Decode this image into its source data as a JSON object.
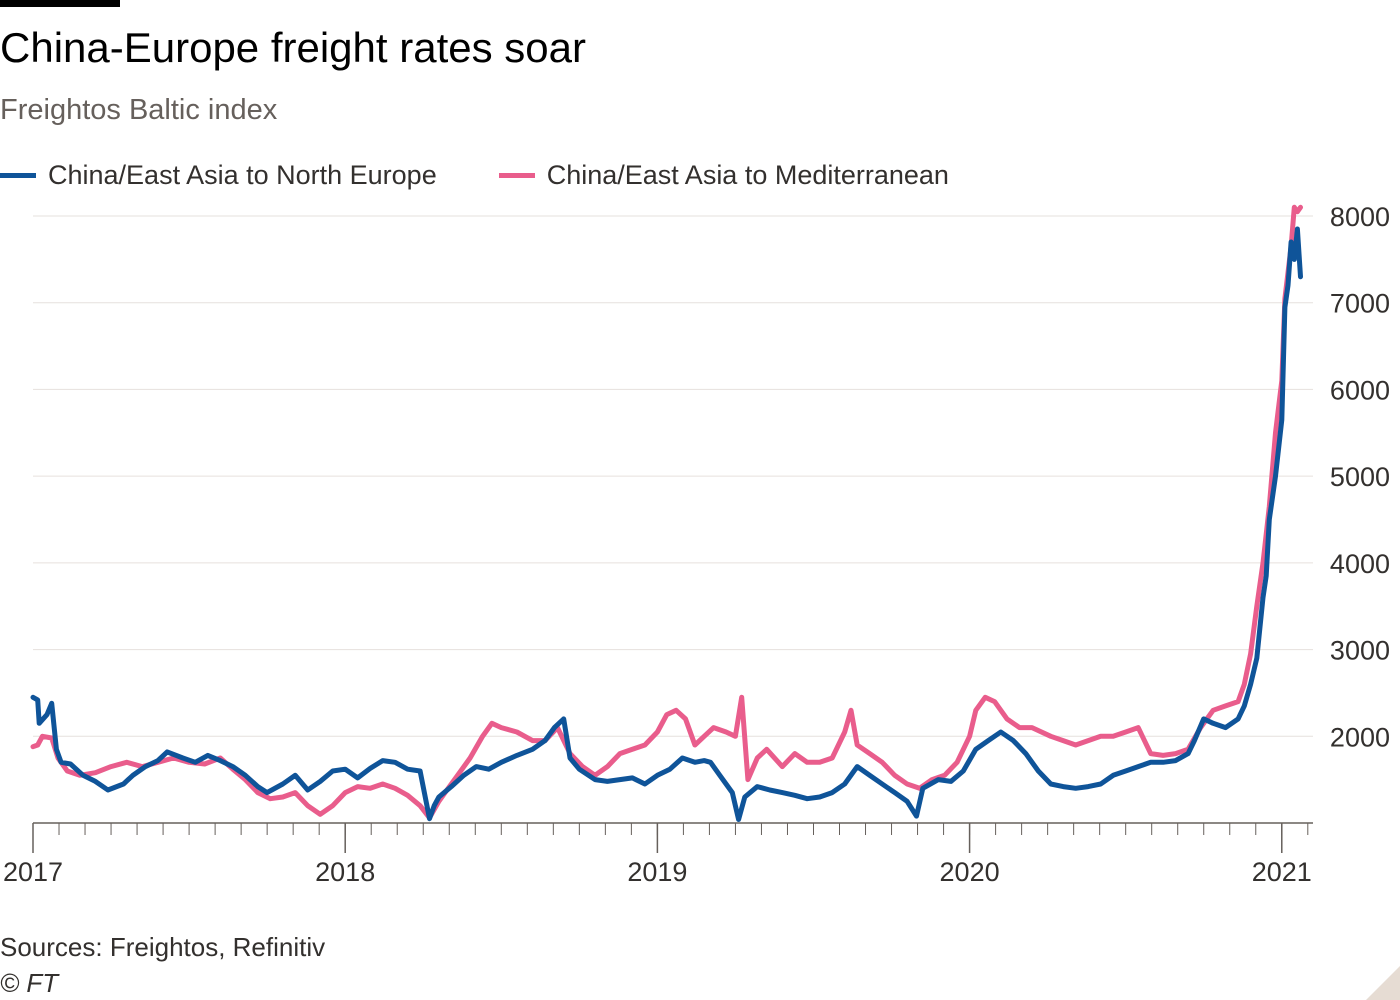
{
  "title": "China-Europe freight rates soar",
  "subtitle": "Freightos Baltic index",
  "source": "Sources: Freightos, Refinitiv",
  "credit": "© FT",
  "colors": {
    "north_europe": "#0f5499",
    "mediterranean": "#e95d8c",
    "grid": "#e6e1dd",
    "axis": "#66605c"
  },
  "chart_data": {
    "type": "line",
    "title": "China-Europe freight rates soar",
    "subtitle": "Freightos Baltic index",
    "xlabel": "",
    "ylabel": "",
    "xlim": [
      2017.0,
      2021.1
    ],
    "ylim": [
      1000,
      8000
    ],
    "y_ticks": [
      2000,
      3000,
      4000,
      5000,
      6000,
      7000,
      8000
    ],
    "x_ticks": [
      2017,
      2018,
      2019,
      2020,
      2021
    ],
    "x_tick_labels": [
      "2017",
      "2018",
      "2019",
      "2020",
      "2021"
    ],
    "grid": true,
    "y_axis_side": "right",
    "legend_position": "top",
    "series": [
      {
        "name": "China/East Asia to North Europe",
        "color": "#0f5499",
        "x": [
          2017.0,
          2017.015,
          2017.02,
          2017.045,
          2017.06,
          2017.075,
          2017.09,
          2017.12,
          2017.16,
          2017.2,
          2017.24,
          2017.29,
          2017.32,
          2017.36,
          2017.4,
          2017.43,
          2017.48,
          2017.52,
          2017.56,
          2017.6,
          2017.64,
          2017.68,
          2017.72,
          2017.75,
          2017.8,
          2017.84,
          2017.88,
          2017.92,
          2017.96,
          2018.0,
          2018.04,
          2018.08,
          2018.12,
          2018.16,
          2018.2,
          2018.24,
          2018.27,
          2018.285,
          2018.3,
          2018.34,
          2018.38,
          2018.42,
          2018.46,
          2018.5,
          2018.55,
          2018.6,
          2018.64,
          2018.67,
          2018.7,
          2018.72,
          2018.75,
          2018.8,
          2018.84,
          2018.88,
          2018.92,
          2018.96,
          2019.0,
          2019.04,
          2019.08,
          2019.12,
          2019.15,
          2019.17,
          2019.2,
          2019.24,
          2019.26,
          2019.28,
          2019.32,
          2019.36,
          2019.4,
          2019.44,
          2019.48,
          2019.52,
          2019.56,
          2019.6,
          2019.64,
          2019.68,
          2019.72,
          2019.76,
          2019.8,
          2019.83,
          2019.85,
          2019.9,
          2019.94,
          2019.98,
          2020.02,
          2020.06,
          2020.1,
          2020.14,
          2020.18,
          2020.22,
          2020.26,
          2020.3,
          2020.34,
          2020.38,
          2020.42,
          2020.46,
          2020.5,
          2020.54,
          2020.58,
          2020.62,
          2020.66,
          2020.7,
          2020.72,
          2020.75,
          2020.78,
          2020.82,
          2020.86,
          2020.88,
          2020.9,
          2020.92,
          2020.94,
          2020.95,
          2020.96,
          2020.98,
          2021.0,
          2021.01,
          2021.02,
          2021.03,
          2021.04,
          2021.05,
          2021.06
        ],
        "y": [
          2450,
          2420,
          2150,
          2250,
          2380,
          1850,
          1700,
          1680,
          1550,
          1480,
          1380,
          1450,
          1550,
          1650,
          1720,
          1820,
          1750,
          1700,
          1780,
          1720,
          1650,
          1550,
          1420,
          1350,
          1450,
          1550,
          1380,
          1480,
          1600,
          1620,
          1520,
          1630,
          1720,
          1700,
          1620,
          1600,
          1050,
          1200,
          1300,
          1420,
          1550,
          1650,
          1620,
          1700,
          1780,
          1850,
          1950,
          2100,
          2200,
          1750,
          1620,
          1500,
          1480,
          1500,
          1520,
          1450,
          1550,
          1620,
          1750,
          1700,
          1720,
          1700,
          1550,
          1350,
          1040,
          1300,
          1420,
          1380,
          1350,
          1320,
          1280,
          1300,
          1350,
          1450,
          1650,
          1550,
          1450,
          1350,
          1250,
          1080,
          1400,
          1500,
          1480,
          1600,
          1850,
          1950,
          2050,
          1950,
          1800,
          1600,
          1450,
          1420,
          1400,
          1420,
          1450,
          1550,
          1600,
          1650,
          1700,
          1700,
          1720,
          1800,
          1950,
          2200,
          2150,
          2100,
          2200,
          2350,
          2600,
          2900,
          3600,
          3850,
          4500,
          5000,
          5650,
          6950,
          7200,
          7700,
          7500,
          7850,
          7300
        ]
      },
      {
        "name": "China/East Asia to Mediterranean",
        "color": "#e95d8c",
        "x": [
          2017.0,
          2017.015,
          2017.03,
          2017.06,
          2017.08,
          2017.11,
          2017.15,
          2017.2,
          2017.25,
          2017.3,
          2017.35,
          2017.4,
          2017.45,
          2017.5,
          2017.55,
          2017.6,
          2017.64,
          2017.68,
          2017.72,
          2017.76,
          2017.8,
          2017.84,
          2017.88,
          2017.92,
          2017.96,
          2018.0,
          2018.04,
          2018.08,
          2018.12,
          2018.16,
          2018.2,
          2018.24,
          2018.27,
          2018.3,
          2018.32,
          2018.36,
          2018.4,
          2018.44,
          2018.47,
          2018.5,
          2018.55,
          2018.6,
          2018.64,
          2018.68,
          2018.72,
          2018.76,
          2018.8,
          2018.84,
          2018.88,
          2018.92,
          2018.96,
          2019.0,
          2019.03,
          2019.06,
          2019.09,
          2019.12,
          2019.15,
          2019.18,
          2019.22,
          2019.25,
          2019.27,
          2019.29,
          2019.32,
          2019.35,
          2019.4,
          2019.44,
          2019.48,
          2019.52,
          2019.56,
          2019.6,
          2019.62,
          2019.64,
          2019.68,
          2019.72,
          2019.76,
          2019.8,
          2019.84,
          2019.88,
          2019.92,
          2019.96,
          2020.0,
          2020.02,
          2020.05,
          2020.08,
          2020.12,
          2020.16,
          2020.2,
          2020.26,
          2020.3,
          2020.34,
          2020.38,
          2020.42,
          2020.46,
          2020.5,
          2020.54,
          2020.58,
          2020.62,
          2020.66,
          2020.7,
          2020.74,
          2020.78,
          2020.82,
          2020.86,
          2020.88,
          2020.9,
          2020.92,
          2020.94,
          2020.96,
          2020.98,
          2021.0,
          2021.01,
          2021.02,
          2021.03,
          2021.04,
          2021.05,
          2021.06
        ],
        "y": [
          1880,
          1900,
          2000,
          1980,
          1750,
          1600,
          1550,
          1580,
          1650,
          1700,
          1650,
          1700,
          1750,
          1700,
          1680,
          1750,
          1620,
          1500,
          1350,
          1280,
          1300,
          1350,
          1200,
          1100,
          1200,
          1350,
          1420,
          1400,
          1450,
          1400,
          1320,
          1200,
          1060,
          1250,
          1350,
          1550,
          1750,
          2000,
          2150,
          2100,
          2050,
          1950,
          1950,
          2100,
          1800,
          1650,
          1550,
          1650,
          1800,
          1850,
          1900,
          2050,
          2250,
          2300,
          2200,
          1900,
          2000,
          2100,
          2050,
          2000,
          2450,
          1500,
          1750,
          1850,
          1650,
          1800,
          1700,
          1700,
          1750,
          2050,
          2300,
          1900,
          1800,
          1700,
          1550,
          1450,
          1400,
          1500,
          1550,
          1700,
          2000,
          2300,
          2450,
          2400,
          2200,
          2100,
          2100,
          2000,
          1950,
          1900,
          1950,
          2000,
          2000,
          2050,
          2100,
          1800,
          1780,
          1800,
          1850,
          2100,
          2300,
          2350,
          2400,
          2600,
          2950,
          3500,
          4000,
          4650,
          5500,
          6100,
          7050,
          7350,
          7650,
          8100,
          8050,
          8100
        ]
      }
    ]
  }
}
